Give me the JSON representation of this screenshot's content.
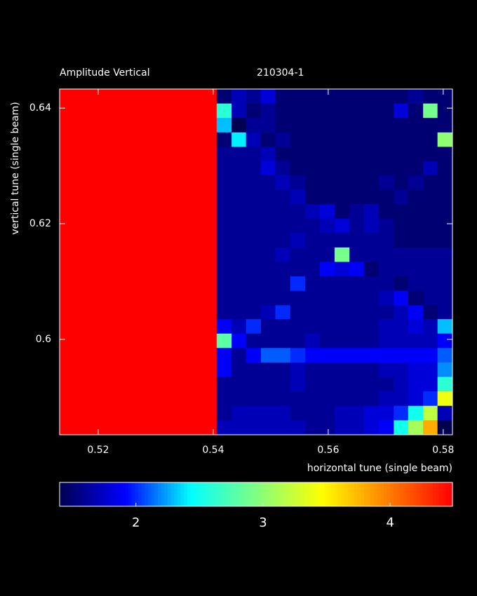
{
  "chart_data": {
    "type": "heatmap",
    "title": "Amplitude Vertical",
    "subtitle": "210304-1",
    "x_label": "horizontal tune (single beam)",
    "y_label": "vertical tune (single beam)",
    "xlim": [
      0.5133,
      0.5816
    ],
    "ylim": [
      0.5835,
      0.6433
    ],
    "xticks": [
      0.52,
      0.54,
      0.56,
      0.58
    ],
    "yticks": [
      0.6,
      0.62,
      0.64
    ],
    "zlim": [
      1.4,
      4.49
    ],
    "zticks": [
      2,
      3,
      4
    ],
    "colormap": [
      "#000050",
      "#0000ff",
      "#00ffff",
      "#80ff80",
      "#ffff00",
      "#ff8000",
      "#ff0000"
    ],
    "xbins": [
      0.5133,
      0.5406,
      0.5432,
      0.5457,
      0.5483,
      0.5508,
      0.5534,
      0.556,
      0.5585,
      0.5611,
      0.5637,
      0.5662,
      0.5688,
      0.5714,
      0.5739,
      0.5765,
      0.579,
      0.5816
    ],
    "ybins": [
      0.6433,
      0.6408,
      0.6383,
      0.6358,
      0.6333,
      0.6308,
      0.6284,
      0.6259,
      0.6234,
      0.6209,
      0.6184,
      0.6159,
      0.6134,
      0.6109,
      0.6084,
      0.6059,
      0.6035,
      0.601,
      0.5985,
      0.596,
      0.5935,
      0.591,
      0.5885,
      0.586,
      0.5835
    ],
    "values": [
      [
        4.49,
        1.5,
        1.7,
        1.6,
        1.8,
        1.5,
        1.5,
        1.5,
        1.5,
        1.5,
        1.5,
        1.5,
        1.5,
        1.5,
        1.6,
        1.5,
        1.5
      ],
      [
        4.49,
        2.6,
        1.7,
        1.5,
        1.6,
        1.5,
        1.5,
        1.5,
        1.5,
        1.5,
        1.5,
        1.5,
        1.5,
        1.8,
        1.5,
        2.9,
        1.5
      ],
      [
        4.49,
        2.3,
        1.4,
        1.6,
        1.6,
        1.5,
        1.5,
        1.5,
        1.5,
        1.5,
        1.5,
        1.5,
        1.5,
        1.5,
        1.5,
        1.5,
        1.5
      ],
      [
        4.49,
        1.5,
        2.4,
        1.7,
        1.5,
        1.6,
        1.5,
        1.5,
        1.5,
        1.5,
        1.5,
        1.5,
        1.5,
        1.5,
        1.5,
        1.5,
        3.0
      ],
      [
        4.49,
        1.6,
        1.6,
        1.6,
        1.7,
        1.5,
        1.5,
        1.5,
        1.5,
        1.5,
        1.5,
        1.5,
        1.5,
        1.5,
        1.5,
        1.5,
        1.5
      ],
      [
        4.49,
        1.6,
        1.6,
        1.6,
        1.8,
        1.6,
        1.5,
        1.5,
        1.5,
        1.5,
        1.5,
        1.5,
        1.5,
        1.5,
        1.5,
        1.7,
        1.5
      ],
      [
        4.49,
        1.6,
        1.6,
        1.6,
        1.6,
        1.7,
        1.6,
        1.5,
        1.5,
        1.5,
        1.5,
        1.5,
        1.6,
        1.5,
        1.6,
        1.5,
        1.5
      ],
      [
        4.49,
        1.6,
        1.6,
        1.6,
        1.6,
        1.6,
        1.7,
        1.5,
        1.5,
        1.5,
        1.5,
        1.5,
        1.5,
        1.6,
        1.5,
        1.5,
        1.5
      ],
      [
        4.49,
        1.6,
        1.6,
        1.6,
        1.6,
        1.6,
        1.6,
        1.7,
        1.8,
        1.5,
        1.6,
        1.7,
        1.5,
        1.5,
        1.5,
        1.5,
        1.5
      ],
      [
        4.49,
        1.6,
        1.6,
        1.6,
        1.6,
        1.6,
        1.6,
        1.6,
        1.7,
        1.8,
        1.6,
        1.7,
        1.6,
        1.5,
        1.5,
        1.5,
        1.5
      ],
      [
        4.49,
        1.6,
        1.6,
        1.6,
        1.6,
        1.6,
        1.7,
        1.6,
        1.6,
        1.6,
        1.6,
        1.6,
        1.6,
        1.5,
        1.5,
        1.5,
        1.5
      ],
      [
        4.49,
        1.6,
        1.6,
        1.6,
        1.6,
        1.7,
        1.6,
        1.6,
        1.6,
        2.9,
        1.6,
        1.6,
        1.6,
        1.6,
        1.6,
        1.6,
        1.6
      ],
      [
        4.49,
        1.6,
        1.6,
        1.6,
        1.6,
        1.6,
        1.6,
        1.6,
        1.9,
        1.8,
        1.9,
        1.5,
        1.6,
        1.6,
        1.6,
        1.6,
        1.6
      ],
      [
        4.49,
        1.6,
        1.6,
        1.6,
        1.6,
        1.6,
        2.0,
        1.6,
        1.6,
        1.6,
        1.6,
        1.6,
        1.6,
        1.5,
        1.6,
        1.6,
        1.6
      ],
      [
        4.49,
        1.6,
        1.6,
        1.6,
        1.6,
        1.6,
        1.6,
        1.6,
        1.6,
        1.6,
        1.6,
        1.6,
        1.7,
        1.9,
        1.5,
        1.6,
        1.6
      ],
      [
        4.49,
        1.6,
        1.6,
        1.6,
        1.7,
        2.0,
        1.6,
        1.6,
        1.6,
        1.6,
        1.6,
        1.6,
        1.6,
        1.7,
        1.9,
        1.5,
        1.6
      ],
      [
        4.49,
        1.9,
        1.7,
        2.0,
        1.6,
        1.6,
        1.6,
        1.6,
        1.6,
        1.6,
        1.6,
        1.6,
        1.7,
        1.7,
        1.8,
        1.7,
        2.3
      ],
      [
        4.49,
        2.8,
        1.9,
        1.6,
        1.6,
        1.6,
        1.6,
        1.7,
        1.6,
        1.6,
        1.6,
        1.6,
        1.7,
        1.7,
        1.7,
        1.7,
        1.9
      ],
      [
        4.49,
        1.9,
        1.6,
        1.9,
        2.1,
        2.1,
        2.0,
        1.9,
        1.9,
        1.9,
        1.9,
        1.9,
        1.9,
        1.9,
        1.9,
        1.9,
        2.1
      ],
      [
        4.49,
        1.9,
        1.6,
        1.6,
        1.6,
        1.6,
        1.7,
        1.6,
        1.6,
        1.6,
        1.6,
        1.6,
        1.7,
        1.7,
        1.8,
        1.8,
        2.2
      ],
      [
        4.49,
        1.6,
        1.6,
        1.6,
        1.6,
        1.6,
        1.7,
        1.6,
        1.6,
        1.6,
        1.6,
        1.6,
        1.6,
        1.7,
        1.8,
        1.8,
        2.6
      ],
      [
        4.49,
        1.6,
        1.6,
        1.6,
        1.6,
        1.6,
        1.6,
        1.6,
        1.6,
        1.6,
        1.6,
        1.6,
        1.7,
        1.7,
        1.8,
        2.0,
        3.4
      ],
      [
        4.49,
        1.6,
        1.7,
        1.7,
        1.7,
        1.7,
        1.6,
        1.6,
        1.6,
        1.7,
        1.7,
        1.8,
        1.8,
        2.0,
        2.5,
        3.2,
        1.7
      ],
      [
        4.49,
        1.7,
        1.7,
        1.7,
        1.7,
        1.7,
        1.7,
        1.6,
        1.6,
        1.7,
        1.7,
        1.8,
        1.9,
        2.5,
        3.1,
        3.8,
        1.4
      ]
    ]
  }
}
